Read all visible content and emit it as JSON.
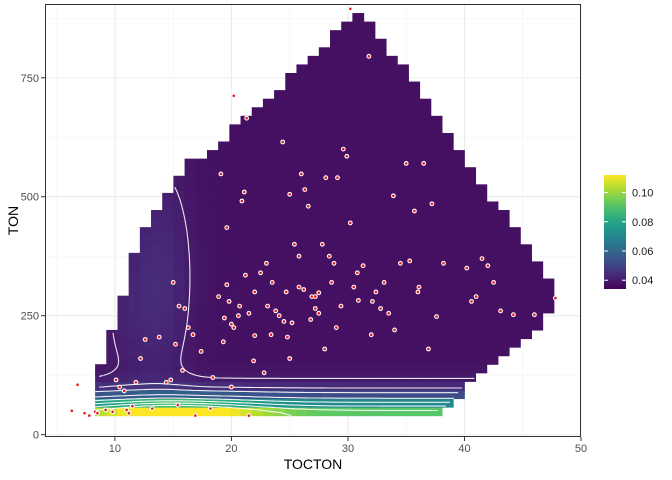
{
  "chart_data": {
    "type": "heatmap",
    "title": "",
    "xlabel": "TOCTON",
    "ylabel": "TON",
    "xlim": [
      4,
      50
    ],
    "ylim": [
      -5,
      905
    ],
    "x_ticks": [
      10,
      20,
      30,
      40,
      50
    ],
    "y_ticks": [
      0,
      250,
      500,
      750
    ],
    "grid": true,
    "colorscale": "viridis",
    "colorbar": {
      "position": "right",
      "range": [
        0.034,
        0.112
      ],
      "ticks": [
        0.04,
        0.06,
        0.08,
        0.1
      ],
      "tick_labels": [
        "0.04",
        "0.06",
        "0.08",
        "0.10"
      ]
    },
    "grid_bins": {
      "x_step": 0.96,
      "y_step": 18
    },
    "region_hull_boundary": [
      [
        8.3,
        40
      ],
      [
        37.8,
        40
      ],
      [
        41.5,
        132
      ],
      [
        45.5,
        204
      ],
      [
        48.3,
        288
      ],
      [
        31.2,
        893
      ],
      [
        17.6,
        582
      ],
      [
        16.7,
        585
      ],
      [
        13.0,
        450
      ],
      [
        12.0,
        400
      ],
      [
        10.0,
        246
      ],
      [
        8.3,
        98
      ]
    ],
    "contour_levels": [
      0.04,
      0.045,
      0.05,
      0.06,
      0.07,
      0.08,
      0.09,
      0.1
    ],
    "observations": [
      [
        6.3,
        50
      ],
      [
        6.8,
        105
      ],
      [
        7.4,
        45
      ],
      [
        7.8,
        40
      ],
      [
        8.3,
        48
      ],
      [
        8.5,
        45
      ],
      [
        9.2,
        52
      ],
      [
        9.8,
        48
      ],
      [
        10.1,
        115
      ],
      [
        10.4,
        100
      ],
      [
        10.8,
        92
      ],
      [
        11.0,
        52
      ],
      [
        11.2,
        45
      ],
      [
        11.5,
        60
      ],
      [
        11.8,
        110
      ],
      [
        12.2,
        160
      ],
      [
        12.6,
        200
      ],
      [
        13.2,
        55
      ],
      [
        13.8,
        205
      ],
      [
        14.4,
        110
      ],
      [
        14.8,
        115
      ],
      [
        15.0,
        320
      ],
      [
        15.2,
        190
      ],
      [
        15.4,
        62
      ],
      [
        15.5,
        270
      ],
      [
        15.8,
        135
      ],
      [
        16.0,
        265
      ],
      [
        16.3,
        225
      ],
      [
        16.7,
        210
      ],
      [
        16.9,
        40
      ],
      [
        17.4,
        175
      ],
      [
        18.2,
        55
      ],
      [
        18.4,
        120
      ],
      [
        18.9,
        290
      ],
      [
        19.1,
        548
      ],
      [
        19.4,
        245
      ],
      [
        19.6,
        435
      ],
      [
        19.8,
        280
      ],
      [
        20.0,
        232
      ],
      [
        20.2,
        225
      ],
      [
        20.6,
        250
      ],
      [
        20.9,
        491
      ],
      [
        21.1,
        510
      ],
      [
        21.3,
        665
      ],
      [
        21.5,
        40
      ],
      [
        20.2,
        712
      ],
      [
        22.0,
        300
      ],
      [
        22.5,
        340
      ],
      [
        23.0,
        360
      ],
      [
        23.4,
        210
      ],
      [
        23.8,
        260
      ],
      [
        24.1,
        250
      ],
      [
        24.4,
        615
      ],
      [
        24.7,
        300
      ],
      [
        25.0,
        505
      ],
      [
        25.2,
        235
      ],
      [
        25.4,
        400
      ],
      [
        25.8,
        310
      ],
      [
        26.0,
        548
      ],
      [
        26.3,
        515
      ],
      [
        26.6,
        480
      ],
      [
        26.9,
        290
      ],
      [
        27.2,
        265
      ],
      [
        27.5,
        255
      ],
      [
        27.8,
        400
      ],
      [
        28.1,
        540
      ],
      [
        28.4,
        375
      ],
      [
        28.8,
        360
      ],
      [
        29.1,
        540
      ],
      [
        29.4,
        270
      ],
      [
        29.6,
        600
      ],
      [
        29.9,
        585
      ],
      [
        30.2,
        445
      ],
      [
        30.5,
        310
      ],
      [
        30.9,
        282
      ],
      [
        31.3,
        355
      ],
      [
        31.8,
        795
      ],
      [
        32.1,
        280
      ],
      [
        32.4,
        300
      ],
      [
        32.8,
        265
      ],
      [
        33.1,
        320
      ],
      [
        33.5,
        255
      ],
      [
        33.9,
        502
      ],
      [
        34.5,
        360
      ],
      [
        35.0,
        570
      ],
      [
        35.3,
        365
      ],
      [
        35.7,
        470
      ],
      [
        36.1,
        310
      ],
      [
        36.5,
        570
      ],
      [
        36.9,
        180
      ],
      [
        37.2,
        485
      ],
      [
        37.6,
        248
      ],
      [
        38.2,
        360
      ],
      [
        40.2,
        350
      ],
      [
        40.6,
        280
      ],
      [
        41.0,
        290
      ],
      [
        41.5,
        370
      ],
      [
        42.0,
        355
      ],
      [
        42.5,
        320
      ],
      [
        43.1,
        260
      ],
      [
        44.2,
        252
      ],
      [
        46.0,
        252
      ],
      [
        47.8,
        287
      ],
      [
        30.2,
        895
      ],
      [
        20.0,
        100
      ],
      [
        19.6,
        315
      ],
      [
        22.0,
        208
      ],
      [
        24.5,
        238
      ],
      [
        27.2,
        290
      ],
      [
        28.6,
        320
      ],
      [
        23.5,
        320
      ],
      [
        25.8,
        375
      ],
      [
        21.5,
        255
      ],
      [
        26.8,
        242
      ],
      [
        29.0,
        225
      ],
      [
        24.8,
        205
      ],
      [
        20.7,
        270
      ],
      [
        19.3,
        195
      ],
      [
        21.9,
        155
      ],
      [
        23.1,
        270
      ],
      [
        27.5,
        298
      ],
      [
        30.8,
        340
      ],
      [
        32.0,
        210
      ],
      [
        25.0,
        160
      ],
      [
        28.0,
        180
      ],
      [
        22.8,
        130
      ],
      [
        26.2,
        305
      ],
      [
        21.2,
        335
      ],
      [
        34.0,
        220
      ],
      [
        36.0,
        300
      ]
    ]
  }
}
